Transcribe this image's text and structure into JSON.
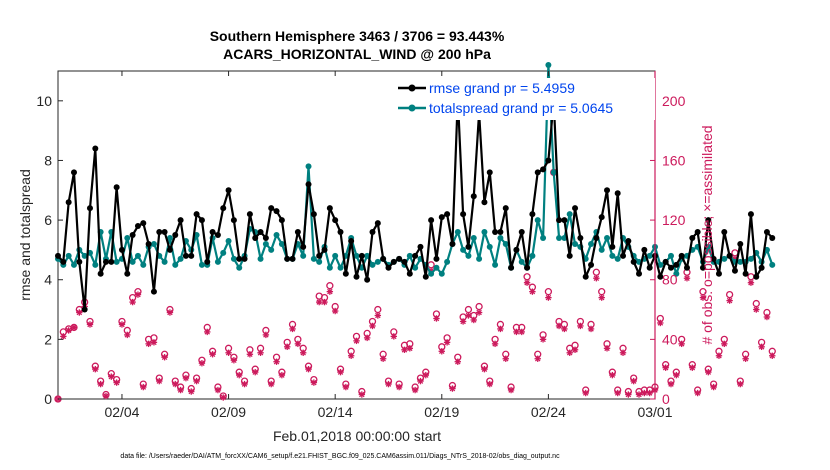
{
  "chart_data": {
    "type": "line",
    "title": "Southern Hemisphere 3463 / 3706 = 93.443%",
    "subtitle": "ACARS_HORIZONTAL_WIND @ 200 hPa",
    "xlabel": "Feb.01,2018 00:00:00 start",
    "ylabel": "rmse and totalspread",
    "ylabel_right": "# of obs: o=possible; ×=assimilated",
    "footer": "data file: /Users/raeder/DAI/ATM_forcXX/CAM6_setup/f.e21.FHIST_BGC.f09_025.CAM6assim.011/Diags_NTrS_2018-02/obs_diag_output.nc",
    "xlim": [
      1,
      29
    ],
    "ylim": [
      0,
      11
    ],
    "ylim_right": [
      0,
      220
    ],
    "x_ticks": [
      {
        "v": 4,
        "label": "02/04"
      },
      {
        "v": 9,
        "label": "02/09"
      },
      {
        "v": 14,
        "label": "02/14"
      },
      {
        "v": 19,
        "label": "02/19"
      },
      {
        "v": 24,
        "label": "02/24"
      },
      {
        "v": 29,
        "label": "03/01"
      }
    ],
    "y_ticks": [
      {
        "v": 0,
        "label": "0"
      },
      {
        "v": 2,
        "label": "2"
      },
      {
        "v": 4,
        "label": "4"
      },
      {
        "v": 6,
        "label": "6"
      },
      {
        "v": 8,
        "label": "8"
      },
      {
        "v": 10,
        "label": "10"
      }
    ],
    "y_ticks_right": [
      {
        "v": 0,
        "label": "0"
      },
      {
        "v": 40,
        "label": "40"
      },
      {
        "v": 80,
        "label": "80"
      },
      {
        "v": 120,
        "label": "120"
      },
      {
        "v": 160,
        "label": "160"
      },
      {
        "v": 200,
        "label": "200"
      }
    ],
    "grid": false,
    "legend_position": "top-right",
    "x_step": 0.25,
    "series": [
      {
        "name": "rmse",
        "legend": "rmse grand pr = 5.4959",
        "color": "#000000",
        "values": [
          4.8,
          4.6,
          6.6,
          7.6,
          4.6,
          3.0,
          6.4,
          8.4,
          4.2,
          4.6,
          4.6,
          7.1,
          5.0,
          4.2,
          5.5,
          5.8,
          5.9,
          5.2,
          3.6,
          5.6,
          5.6,
          5.0,
          5.5,
          6.0,
          4.8,
          4.8,
          6.2,
          6.0,
          4.6,
          5.6,
          5.5,
          6.4,
          7.0,
          6.0,
          4.7,
          4.7,
          6.2,
          5.4,
          5.6,
          5.4,
          6.4,
          6.3,
          6.0,
          4.7,
          4.7,
          5.6,
          5.1,
          7.2,
          6.2,
          4.8,
          5.0,
          6.4,
          6.0,
          5.6,
          4.2,
          5.3,
          4.1,
          4.8,
          4.0,
          5.6,
          5.9,
          4.7,
          4.4,
          4.6,
          4.7,
          4.6,
          4.2,
          4.8,
          5.1,
          4.1,
          6.0,
          4.7,
          6.1,
          6.2,
          5.2,
          10.1,
          6.2,
          5.1,
          6.8,
          9.6,
          6.6,
          7.6,
          5.6,
          5.6,
          6.4,
          4.4,
          5.0,
          5.6,
          4.4,
          6.2,
          7.6,
          7.7,
          8.0,
          10.0,
          6.0,
          6.0,
          4.8,
          6.4,
          5.4,
          4.1,
          4.5,
          5.4,
          6.1,
          7.0,
          5.1,
          6.9,
          4.8,
          5.3,
          4.6,
          4.2,
          5.0,
          4.4,
          4.8,
          4.1,
          4.6,
          4.4,
          4.5,
          4.8,
          4.4,
          5.4,
          5.6,
          4.4,
          6.0,
          4.7,
          4.2,
          5.6,
          4.8,
          4.3,
          5.2,
          4.2,
          6.2,
          4.1,
          4.4,
          5.6,
          5.4
        ]
      },
      {
        "name": "totalspread",
        "legend": "totalspread grand pr = 5.0645",
        "color": "#008080",
        "values": [
          4.7,
          4.5,
          4.8,
          4.5,
          5.0,
          4.8,
          4.9,
          4.5,
          5.6,
          4.7,
          5.6,
          4.6,
          4.7,
          5.4,
          4.6,
          4.8,
          4.5,
          5.1,
          5.2,
          4.8,
          4.6,
          5.4,
          4.5,
          4.7,
          5.3,
          5.0,
          5.5,
          4.5,
          4.5,
          5.4,
          4.6,
          4.9,
          5.3,
          4.7,
          4.4,
          4.8,
          5.7,
          5.6,
          4.7,
          5.2,
          5.0,
          5.5,
          5.2,
          4.7,
          4.7,
          5.2,
          4.8,
          7.8,
          4.7,
          4.6,
          5.1,
          4.4,
          4.8,
          4.4,
          4.8,
          5.4,
          4.8,
          4.4,
          4.8,
          4.5,
          4.6,
          4.7,
          4.5,
          4.6,
          4.7,
          4.5,
          4.8,
          4.4,
          4.7,
          4.5,
          4.2,
          4.4,
          4.2,
          4.6,
          5.2,
          5.6,
          5.0,
          4.8,
          5.4,
          4.7,
          5.6,
          5.1,
          4.5,
          5.4,
          5.2,
          4.4,
          5.0,
          4.6,
          4.4,
          4.8,
          6.0,
          5.4,
          11.2,
          7.6,
          5.4,
          5.4,
          6.2,
          5.2,
          5.1,
          4.7,
          5.2,
          5.6,
          5.0,
          5.4,
          4.8,
          4.7,
          5.4,
          5.1,
          4.8,
          4.6,
          4.7,
          4.8,
          5.1,
          4.5,
          4.6,
          4.8,
          4.2,
          4.7,
          4.8,
          5.0,
          5.1,
          4.6,
          5.1,
          4.6,
          4.6,
          4.7,
          4.8,
          4.6,
          4.6,
          4.6,
          4.7,
          4.9,
          4.6,
          5.0,
          4.5
        ]
      }
    ],
    "obs_possible": [
      0,
      45,
      47,
      48,
      60,
      65,
      52,
      22,
      12,
      3,
      17,
      13,
      52,
      46,
      68,
      72,
      10,
      40,
      41,
      14,
      30,
      60,
      12,
      8,
      16,
      7,
      14,
      26,
      48,
      32,
      8,
      2,
      34,
      28,
      18,
      12,
      33,
      20,
      34,
      46,
      12,
      28,
      18,
      38,
      50,
      40,
      34,
      22,
      13,
      69,
      68,
      76,
      62,
      20,
      10,
      32,
      42,
      5,
      44,
      52,
      60,
      30,
      12,
      45,
      10,
      36,
      37,
      8,
      14,
      18,
      90,
      57,
      35,
      41,
      9,
      28,
      55,
      60,
      56,
      62,
      22,
      12,
      40,
      50,
      30,
      8,
      48,
      48,
      82,
      75,
      30,
      43,
      72,
      152,
      52,
      50,
      34,
      36,
      52,
      6,
      50,
      85,
      72,
      37,
      18,
      6,
      34,
      5,
      14,
      5,
      6,
      6,
      8,
      54,
      23,
      12,
      18,
      40,
      85,
      23,
      6,
      72,
      20,
      10,
      32,
      40,
      70,
      98,
      12,
      30,
      82,
      64,
      38,
      58,
      32
    ],
    "obs_assimilated": [
      0,
      42,
      46,
      48,
      58,
      62,
      50,
      20,
      10,
      2,
      15,
      11,
      50,
      43,
      65,
      70,
      8,
      37,
      38,
      12,
      28,
      58,
      10,
      6,
      14,
      5,
      12,
      24,
      45,
      30,
      6,
      1,
      31,
      26,
      16,
      10,
      30,
      18,
      31,
      43,
      10,
      25,
      16,
      35,
      47,
      37,
      31,
      20,
      11,
      65,
      65,
      72,
      59,
      18,
      8,
      29,
      39,
      3,
      41,
      49,
      56,
      27,
      10,
      42,
      8,
      33,
      34,
      6,
      12,
      16,
      86,
      54,
      32,
      38,
      7,
      25,
      52,
      56,
      53,
      58,
      20,
      10,
      37,
      47,
      27,
      6,
      45,
      45,
      78,
      72,
      27,
      40,
      68,
      152,
      49,
      47,
      31,
      33,
      49,
      4,
      47,
      81,
      68,
      34,
      16,
      4,
      31,
      3,
      12,
      3,
      4,
      4,
      6,
      51,
      21,
      10,
      16,
      37,
      81,
      21,
      4,
      68,
      18,
      8,
      29,
      37,
      66,
      94,
      10,
      27,
      78,
      60,
      35,
      55,
      29
    ]
  }
}
